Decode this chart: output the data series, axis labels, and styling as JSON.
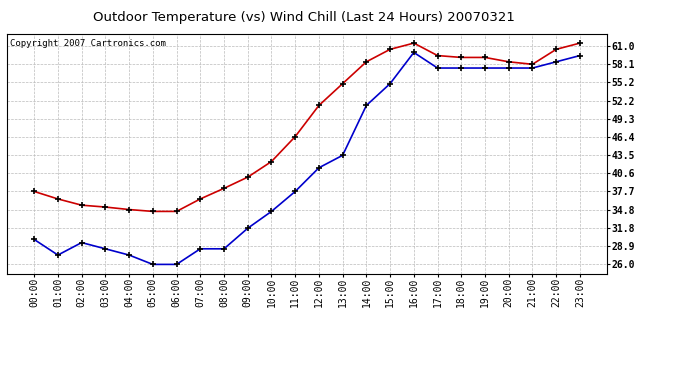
{
  "title": "Outdoor Temperature (vs) Wind Chill (Last 24 Hours) 20070321",
  "copyright": "Copyright 2007 Cartronics.com",
  "x_labels": [
    "00:00",
    "01:00",
    "02:00",
    "03:00",
    "04:00",
    "05:00",
    "06:00",
    "07:00",
    "08:00",
    "09:00",
    "10:00",
    "11:00",
    "12:00",
    "13:00",
    "14:00",
    "15:00",
    "16:00",
    "17:00",
    "18:00",
    "19:00",
    "20:00",
    "21:00",
    "22:00",
    "23:00"
  ],
  "temp_red": [
    37.7,
    36.5,
    35.5,
    35.2,
    34.8,
    34.5,
    34.5,
    36.5,
    38.2,
    40.0,
    42.5,
    46.5,
    51.5,
    55.0,
    58.5,
    60.5,
    61.5,
    59.5,
    59.2,
    59.2,
    58.5,
    58.1,
    60.5,
    61.5
  ],
  "wind_chill_blue": [
    30.0,
    27.5,
    29.5,
    28.5,
    27.5,
    26.0,
    26.0,
    28.5,
    28.5,
    31.8,
    34.5,
    37.7,
    41.5,
    43.5,
    51.5,
    55.0,
    60.0,
    57.5,
    57.5,
    57.5,
    57.5,
    57.5,
    58.5,
    59.5
  ],
  "y_ticks": [
    26.0,
    28.9,
    31.8,
    34.8,
    37.7,
    40.6,
    43.5,
    46.4,
    49.3,
    52.2,
    55.2,
    58.1,
    61.0
  ],
  "ylim": [
    24.5,
    63.0
  ],
  "red_color": "#cc0000",
  "blue_color": "#0000cc",
  "bg_color": "#ffffff",
  "grid_color": "#bbbbbb",
  "title_fontsize": 9.5,
  "copyright_fontsize": 6.5,
  "tick_fontsize": 7.0
}
